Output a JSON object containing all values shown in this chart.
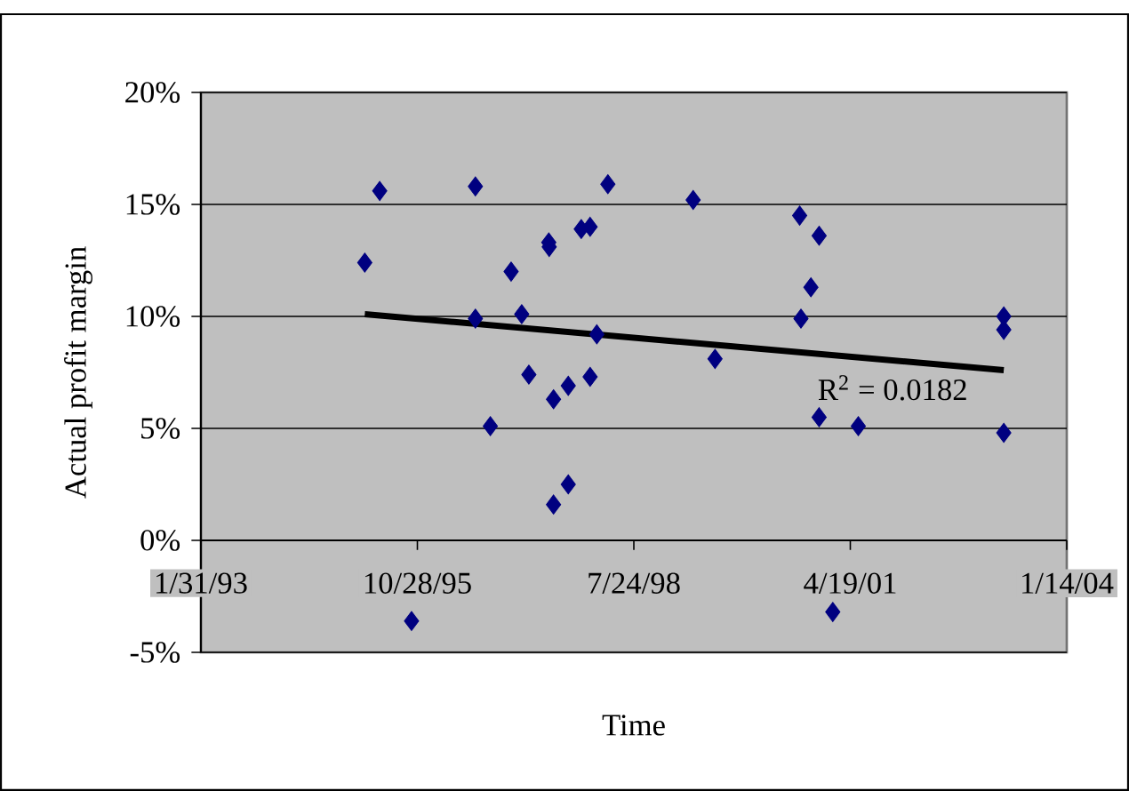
{
  "chart_data": {
    "type": "scatter",
    "xlabel": "Time",
    "ylabel": "Actual profit margin",
    "xlim": [
      "1993-01-31",
      "2004-01-14"
    ],
    "xticks": [
      {
        "value": "1993-01-31",
        "label": "1/31/93"
      },
      {
        "value": "1995-10-28",
        "label": "10/28/95"
      },
      {
        "value": "1998-07-24",
        "label": "7/24/98"
      },
      {
        "value": "2001-04-19",
        "label": "4/19/01"
      },
      {
        "value": "2004-01-14",
        "label": "1/14/04"
      }
    ],
    "ylim": [
      -5,
      20
    ],
    "yticks": [
      {
        "value": -5,
        "label": "-5%"
      },
      {
        "value": 0,
        "label": "0%"
      },
      {
        "value": 5,
        "label": "5%"
      },
      {
        "value": 10,
        "label": "10%"
      },
      {
        "value": 15,
        "label": "15%"
      },
      {
        "value": 20,
        "label": "20%"
      }
    ],
    "grid": "y",
    "annotations": [
      "R$^{2}$ = 0.0182"
    ],
    "series": [
      {
        "marker": "diamond",
        "color": "#000080",
        "x": [
          "1995-02-27",
          "1995-05-07",
          "1996-07-22",
          "1996-07-22",
          "1996-09-29",
          "1997-01-03",
          "1997-02-21",
          "1997-03-26",
          "1997-06-26",
          "1997-06-28",
          "1997-07-18",
          "1997-09-24",
          "1997-07-18",
          "1997-09-24",
          "1997-11-23",
          "1998-01-03",
          "1998-01-03",
          "1998-02-03",
          "1998-03-26",
          "1995-10-01",
          "1999-04-24",
          "1999-08-03",
          "2000-08-28",
          "2000-11-26",
          "2000-10-19",
          "2000-09-03",
          "2000-11-26",
          "2001-05-26",
          "2001-01-28",
          "2003-03-29",
          "2003-03-29",
          "2003-03-29"
        ],
        "values": [
          12.4,
          15.6,
          15.8,
          9.9,
          5.1,
          12.0,
          10.1,
          7.4,
          13.3,
          13.1,
          6.3,
          6.9,
          1.6,
          2.5,
          13.9,
          14.0,
          7.3,
          9.2,
          15.9,
          -3.6,
          15.2,
          8.1,
          14.5,
          13.6,
          11.3,
          9.9,
          5.5,
          5.1,
          -3.2,
          10.0,
          9.4,
          4.8
        ]
      },
      {
        "type": "line",
        "marker": "none",
        "color": "#000000",
        "x": [
          "1995-02-27",
          "2003-03-29"
        ],
        "values": [
          10.1,
          7.6
        ]
      }
    ]
  }
}
